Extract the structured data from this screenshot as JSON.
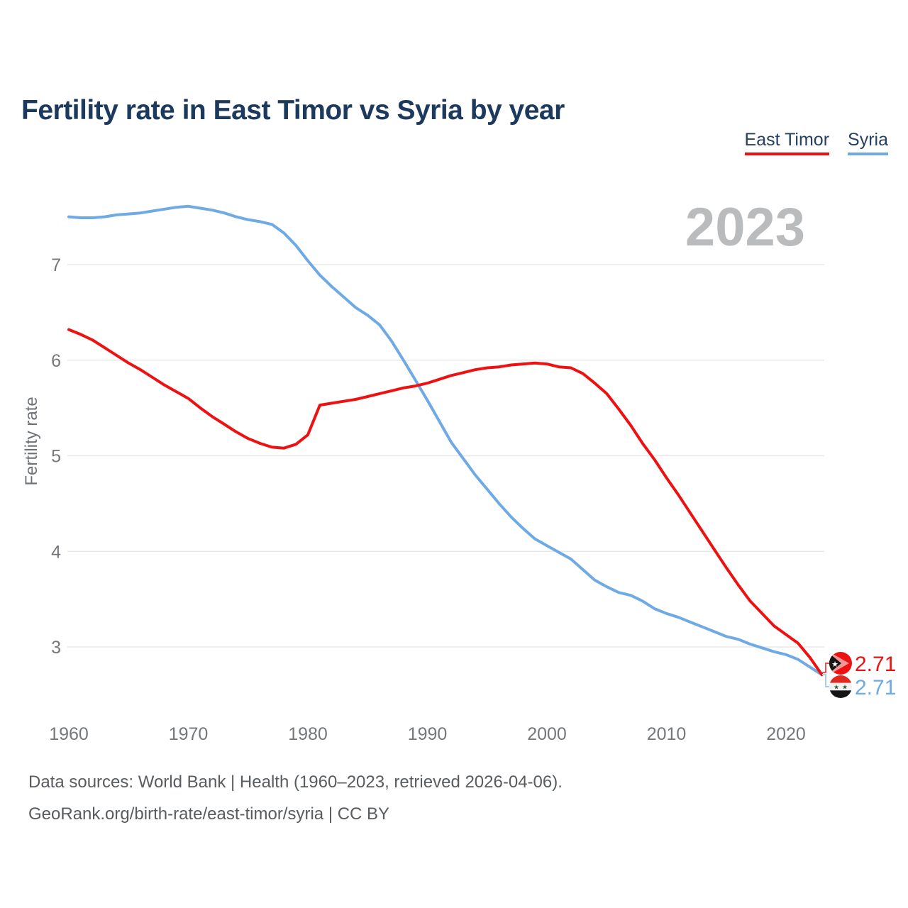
{
  "page": {
    "title": "Fertility rate in East Timor vs Syria by year",
    "watermark_year": "2023",
    "footer_line1": "Data sources: World Bank | Health (1960–2023, retrieved 2026-04-06).",
    "footer_line2": "GeoRank.org/birth-rate/east-timor/syria | CC BY"
  },
  "legend": [
    {
      "label": "East Timor",
      "color": "#ee1111"
    },
    {
      "label": "Syria",
      "color": "#6faae4"
    }
  ],
  "colors": {
    "title": "#1c3a5e",
    "axis_text": "#75787b",
    "gridline": "#e8e8ea",
    "watermark": "#b9bbbd",
    "footer_text": "#595c5f",
    "east_timor_line": "#ee1111",
    "syria_line": "#6faae4",
    "east_timor_connector": "#ef5050",
    "syria_connector": "#a5cbee"
  },
  "flags": {
    "east_timor": {
      "name": "east-timor-flag-icon",
      "field": "#ee1111",
      "arrow": "#f49696",
      "triangle": "#151515",
      "star": "#ffffff"
    },
    "syria": {
      "name": "syria-flag-icon",
      "top": "#e0281e",
      "middle": "#f2f2f2",
      "bottom": "#151515",
      "stars": "#2f5b2f"
    }
  },
  "chart_data": {
    "type": "line",
    "title": "Fertility rate in East Timor vs Syria by year",
    "xlabel": "",
    "ylabel": "Fertility rate",
    "grid": true,
    "legend_position": "top-right",
    "xlim": [
      1960,
      2023
    ],
    "ylim": [
      2.5,
      7.8
    ],
    "x_ticks": [
      1960,
      1970,
      1980,
      1990,
      2000,
      2010,
      2020
    ],
    "y_ticks": [
      3,
      4,
      5,
      6,
      7
    ],
    "x": [
      1960,
      1961,
      1962,
      1963,
      1964,
      1965,
      1966,
      1967,
      1968,
      1969,
      1970,
      1971,
      1972,
      1973,
      1974,
      1975,
      1976,
      1977,
      1978,
      1979,
      1980,
      1981,
      1982,
      1983,
      1984,
      1985,
      1986,
      1987,
      1988,
      1989,
      1990,
      1991,
      1992,
      1993,
      1994,
      1995,
      1996,
      1997,
      1998,
      1999,
      2000,
      2001,
      2002,
      2003,
      2004,
      2005,
      2006,
      2007,
      2008,
      2009,
      2010,
      2011,
      2012,
      2013,
      2014,
      2015,
      2016,
      2017,
      2018,
      2019,
      2020,
      2021,
      2022,
      2023
    ],
    "series": [
      {
        "name": "East Timor",
        "color": "#ee1111",
        "end_label": "2.71",
        "values": [
          6.32,
          6.27,
          6.21,
          6.13,
          6.05,
          5.97,
          5.9,
          5.82,
          5.74,
          5.67,
          5.6,
          5.5,
          5.41,
          5.33,
          5.25,
          5.18,
          5.13,
          5.09,
          5.08,
          5.12,
          5.22,
          5.53,
          5.55,
          5.57,
          5.59,
          5.62,
          5.65,
          5.68,
          5.71,
          5.73,
          5.76,
          5.8,
          5.84,
          5.87,
          5.9,
          5.92,
          5.93,
          5.95,
          5.96,
          5.97,
          5.96,
          5.93,
          5.92,
          5.86,
          5.76,
          5.65,
          5.49,
          5.32,
          5.13,
          4.96,
          4.77,
          4.59,
          4.4,
          4.21,
          4.02,
          3.83,
          3.65,
          3.48,
          3.35,
          3.22,
          3.13,
          3.04,
          2.89,
          2.71
        ]
      },
      {
        "name": "Syria",
        "color": "#6faae4",
        "end_label": "2.71",
        "values": [
          7.5,
          7.49,
          7.49,
          7.5,
          7.52,
          7.53,
          7.54,
          7.56,
          7.58,
          7.6,
          7.61,
          7.59,
          7.57,
          7.54,
          7.5,
          7.47,
          7.45,
          7.42,
          7.33,
          7.2,
          7.04,
          6.89,
          6.77,
          6.66,
          6.55,
          6.47,
          6.37,
          6.2,
          6.0,
          5.79,
          5.58,
          5.36,
          5.14,
          4.97,
          4.8,
          4.65,
          4.5,
          4.36,
          4.24,
          4.13,
          4.06,
          3.99,
          3.92,
          3.81,
          3.7,
          3.63,
          3.57,
          3.54,
          3.48,
          3.4,
          3.35,
          3.31,
          3.26,
          3.21,
          3.16,
          3.11,
          3.08,
          3.03,
          2.99,
          2.95,
          2.92,
          2.87,
          2.79,
          2.71
        ]
      }
    ]
  }
}
